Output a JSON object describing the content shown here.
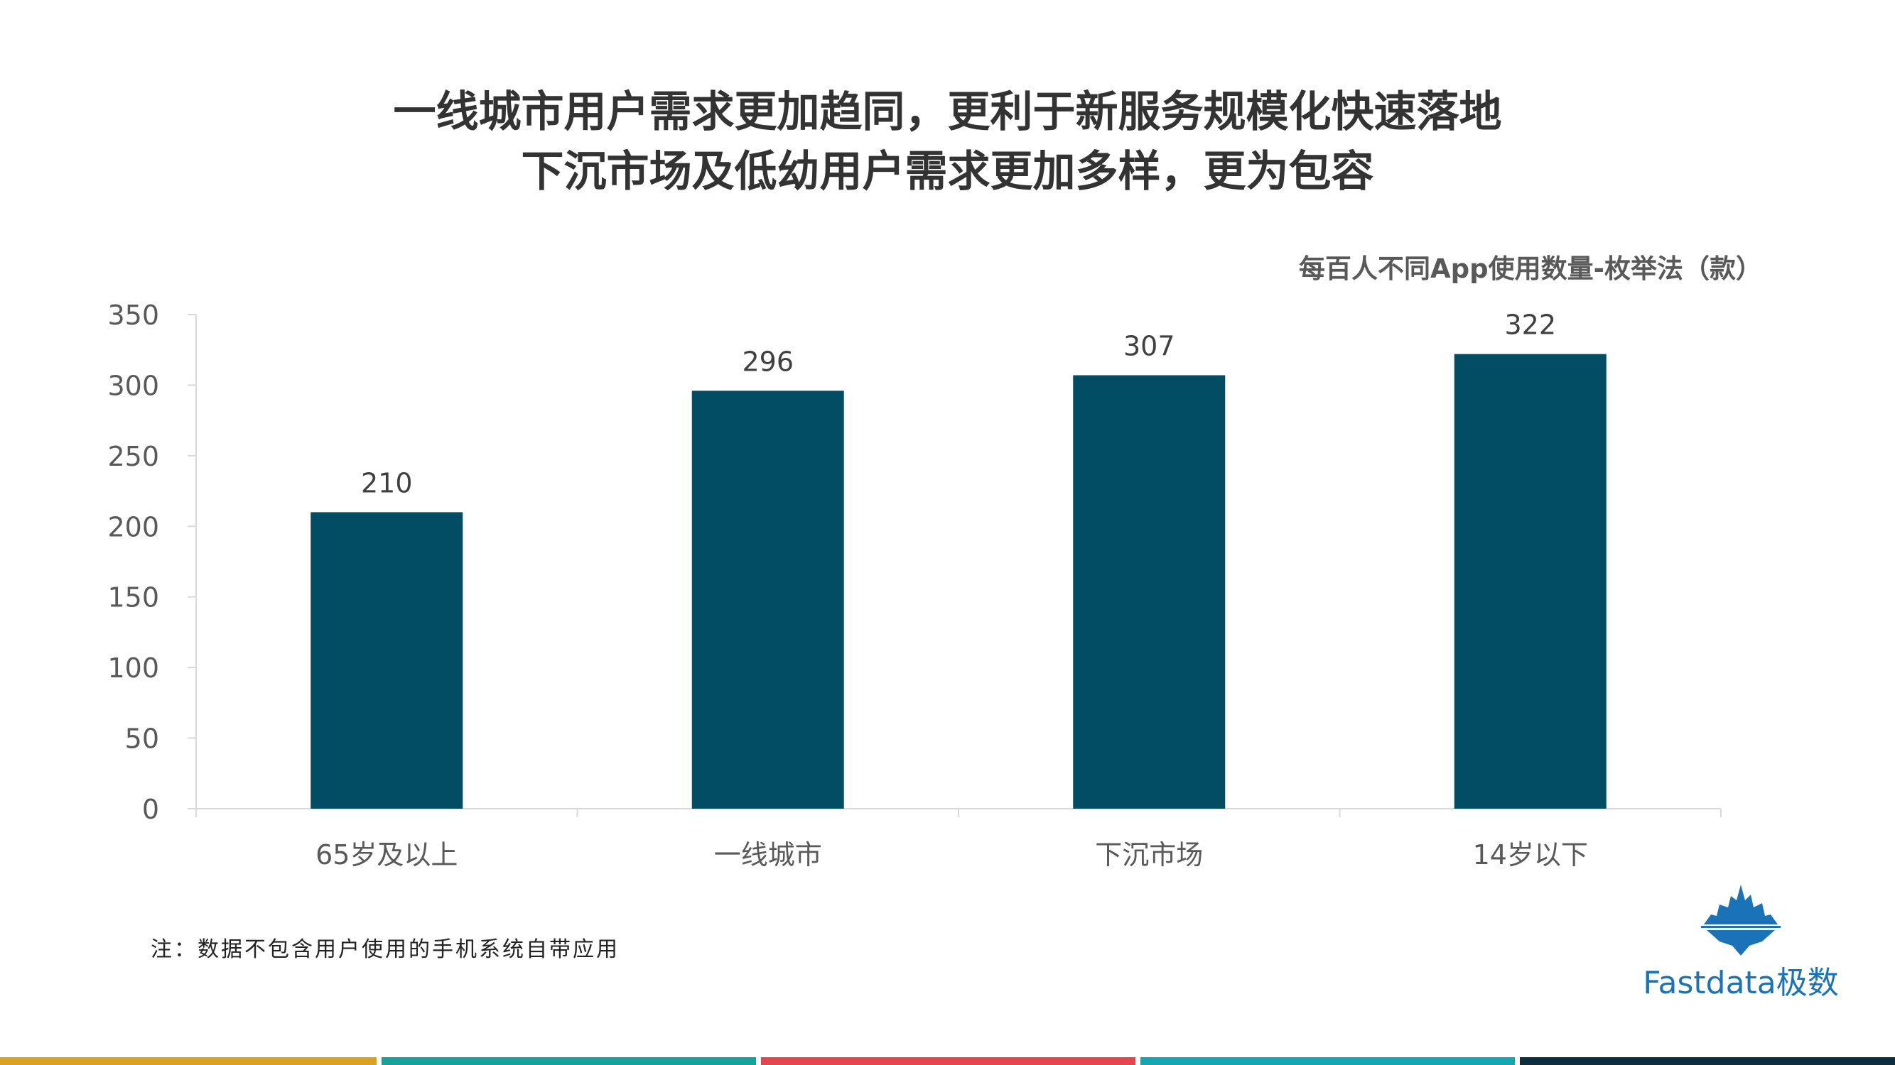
{
  "header": {
    "title_line1": "一线城市用户需求更加趋同，更利于新服务规模化快速落地",
    "title_line2": "下沉市场及低幼用户需求更加多样，更为包容"
  },
  "chart_data": {
    "type": "bar",
    "title": "每百人不同App使用数量-枚举法（款）",
    "categories": [
      "65岁及以上",
      "一线城市",
      "下沉市场",
      "14岁以下"
    ],
    "values": [
      210,
      296,
      307,
      322
    ],
    "ylim": [
      0,
      350
    ],
    "yticks": [
      0,
      50,
      100,
      150,
      200,
      250,
      300,
      350
    ],
    "bar_color": "#024d63",
    "grid": false,
    "legend": "none"
  },
  "footnote": "注：数据不包含用户使用的手机系统自带应用",
  "logo": {
    "icon": "iceberg-icon",
    "text": "Fastdata极数",
    "color": "#1a73b8"
  },
  "bottom_stripe_colors": [
    "#d9a21f",
    "#12a39a",
    "#e84450",
    "#13a7b0",
    "#0e2d3e"
  ]
}
